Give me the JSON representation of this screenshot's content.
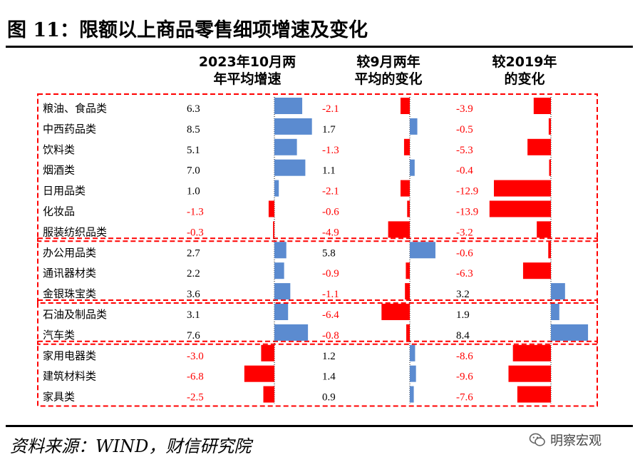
{
  "title": "图 11：限额以上商品零售细项增速及变化",
  "source": "资料来源：WIND，财信研究院",
  "watermark": "明察宏观",
  "colors": {
    "positive": "#5b8bd0",
    "negative": "#ff0000",
    "frame": "#ff0000",
    "rule": "#000000"
  },
  "chart_data": {
    "type": "bar",
    "orientation": "horizontal",
    "categories": [
      "粮油、食品类",
      "中西药品类",
      "饮料类",
      "烟酒类",
      "日用品类",
      "化妆品",
      "服装纺织品类",
      "办公用品类",
      "通讯器材类",
      "金银珠宝类",
      "石油及制品类",
      "汽车类",
      "家用电器类",
      "建筑材料类",
      "家具类"
    ],
    "groups": [
      {
        "label": "",
        "rows": [
          0,
          6
        ]
      },
      {
        "label": "",
        "rows": [
          7,
          9
        ]
      },
      {
        "label": "",
        "rows": [
          10,
          11
        ]
      },
      {
        "label": "",
        "rows": [
          12,
          14
        ]
      }
    ],
    "series": [
      {
        "header": [
          "2023年10月两",
          "年平均增速"
        ],
        "values": [
          6.3,
          8.5,
          5.1,
          7.0,
          1.0,
          -1.3,
          -0.3,
          2.7,
          2.2,
          3.6,
          3.1,
          7.6,
          -3.0,
          -6.8,
          -2.5
        ]
      },
      {
        "header": [
          "较9月两年",
          "平均的变化"
        ],
        "values": [
          -2.1,
          1.7,
          -1.3,
          1.1,
          -2.1,
          -0.6,
          -4.9,
          5.8,
          -0.9,
          -1.1,
          -6.4,
          -0.8,
          1.2,
          1.4,
          0.9
        ]
      },
      {
        "header": [
          "较2019年",
          "的变化"
        ],
        "values": [
          -3.9,
          -0.5,
          -5.3,
          -0.4,
          -12.9,
          -13.9,
          -3.2,
          -0.6,
          -6.3,
          3.2,
          1.9,
          8.4,
          -8.6,
          -9.6,
          -7.6
        ]
      }
    ],
    "label_format": "one decimal; negative labels in red"
  }
}
